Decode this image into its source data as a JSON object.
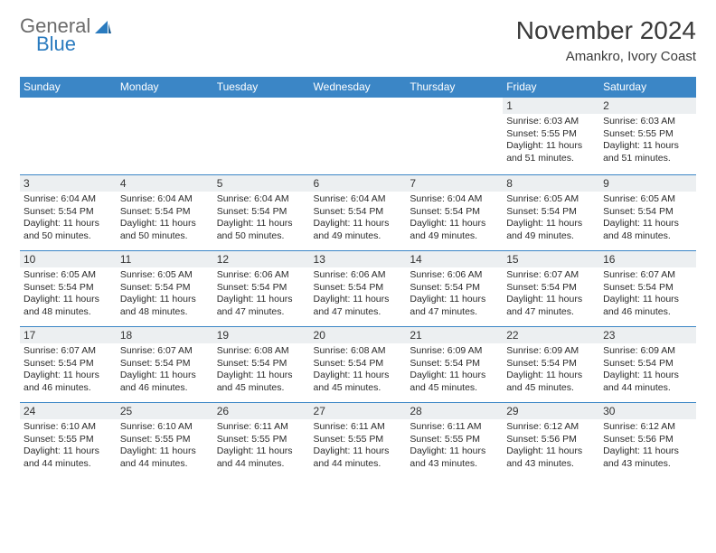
{
  "logo": {
    "general": "General",
    "blue": "Blue"
  },
  "title": "November 2024",
  "location": "Amankro, Ivory Coast",
  "colors": {
    "header_bg": "#3b86c6",
    "header_text": "#ffffff",
    "daynum_bg": "#eceff1",
    "border": "#3b86c6",
    "logo_gray": "#6b6b6b",
    "logo_blue": "#2a7bbf",
    "body_text": "#2a2a2a"
  },
  "days_of_week": [
    "Sunday",
    "Monday",
    "Tuesday",
    "Wednesday",
    "Thursday",
    "Friday",
    "Saturday"
  ],
  "weeks": [
    [
      {
        "empty": true
      },
      {
        "empty": true
      },
      {
        "empty": true
      },
      {
        "empty": true
      },
      {
        "empty": true
      },
      {
        "num": "1",
        "sunrise": "6:03 AM",
        "sunset": "5:55 PM",
        "daylight": "11 hours and 51 minutes."
      },
      {
        "num": "2",
        "sunrise": "6:03 AM",
        "sunset": "5:55 PM",
        "daylight": "11 hours and 51 minutes."
      }
    ],
    [
      {
        "num": "3",
        "sunrise": "6:04 AM",
        "sunset": "5:54 PM",
        "daylight": "11 hours and 50 minutes."
      },
      {
        "num": "4",
        "sunrise": "6:04 AM",
        "sunset": "5:54 PM",
        "daylight": "11 hours and 50 minutes."
      },
      {
        "num": "5",
        "sunrise": "6:04 AM",
        "sunset": "5:54 PM",
        "daylight": "11 hours and 50 minutes."
      },
      {
        "num": "6",
        "sunrise": "6:04 AM",
        "sunset": "5:54 PM",
        "daylight": "11 hours and 49 minutes."
      },
      {
        "num": "7",
        "sunrise": "6:04 AM",
        "sunset": "5:54 PM",
        "daylight": "11 hours and 49 minutes."
      },
      {
        "num": "8",
        "sunrise": "6:05 AM",
        "sunset": "5:54 PM",
        "daylight": "11 hours and 49 minutes."
      },
      {
        "num": "9",
        "sunrise": "6:05 AM",
        "sunset": "5:54 PM",
        "daylight": "11 hours and 48 minutes."
      }
    ],
    [
      {
        "num": "10",
        "sunrise": "6:05 AM",
        "sunset": "5:54 PM",
        "daylight": "11 hours and 48 minutes."
      },
      {
        "num": "11",
        "sunrise": "6:05 AM",
        "sunset": "5:54 PM",
        "daylight": "11 hours and 48 minutes."
      },
      {
        "num": "12",
        "sunrise": "6:06 AM",
        "sunset": "5:54 PM",
        "daylight": "11 hours and 47 minutes."
      },
      {
        "num": "13",
        "sunrise": "6:06 AM",
        "sunset": "5:54 PM",
        "daylight": "11 hours and 47 minutes."
      },
      {
        "num": "14",
        "sunrise": "6:06 AM",
        "sunset": "5:54 PM",
        "daylight": "11 hours and 47 minutes."
      },
      {
        "num": "15",
        "sunrise": "6:07 AM",
        "sunset": "5:54 PM",
        "daylight": "11 hours and 47 minutes."
      },
      {
        "num": "16",
        "sunrise": "6:07 AM",
        "sunset": "5:54 PM",
        "daylight": "11 hours and 46 minutes."
      }
    ],
    [
      {
        "num": "17",
        "sunrise": "6:07 AM",
        "sunset": "5:54 PM",
        "daylight": "11 hours and 46 minutes."
      },
      {
        "num": "18",
        "sunrise": "6:07 AM",
        "sunset": "5:54 PM",
        "daylight": "11 hours and 46 minutes."
      },
      {
        "num": "19",
        "sunrise": "6:08 AM",
        "sunset": "5:54 PM",
        "daylight": "11 hours and 45 minutes."
      },
      {
        "num": "20",
        "sunrise": "6:08 AM",
        "sunset": "5:54 PM",
        "daylight": "11 hours and 45 minutes."
      },
      {
        "num": "21",
        "sunrise": "6:09 AM",
        "sunset": "5:54 PM",
        "daylight": "11 hours and 45 minutes."
      },
      {
        "num": "22",
        "sunrise": "6:09 AM",
        "sunset": "5:54 PM",
        "daylight": "11 hours and 45 minutes."
      },
      {
        "num": "23",
        "sunrise": "6:09 AM",
        "sunset": "5:54 PM",
        "daylight": "11 hours and 44 minutes."
      }
    ],
    [
      {
        "num": "24",
        "sunrise": "6:10 AM",
        "sunset": "5:55 PM",
        "daylight": "11 hours and 44 minutes."
      },
      {
        "num": "25",
        "sunrise": "6:10 AM",
        "sunset": "5:55 PM",
        "daylight": "11 hours and 44 minutes."
      },
      {
        "num": "26",
        "sunrise": "6:11 AM",
        "sunset": "5:55 PM",
        "daylight": "11 hours and 44 minutes."
      },
      {
        "num": "27",
        "sunrise": "6:11 AM",
        "sunset": "5:55 PM",
        "daylight": "11 hours and 44 minutes."
      },
      {
        "num": "28",
        "sunrise": "6:11 AM",
        "sunset": "5:55 PM",
        "daylight": "11 hours and 43 minutes."
      },
      {
        "num": "29",
        "sunrise": "6:12 AM",
        "sunset": "5:56 PM",
        "daylight": "11 hours and 43 minutes."
      },
      {
        "num": "30",
        "sunrise": "6:12 AM",
        "sunset": "5:56 PM",
        "daylight": "11 hours and 43 minutes."
      }
    ]
  ],
  "labels": {
    "sunrise_prefix": "Sunrise: ",
    "sunset_prefix": "Sunset: ",
    "daylight_prefix": "Daylight: "
  }
}
